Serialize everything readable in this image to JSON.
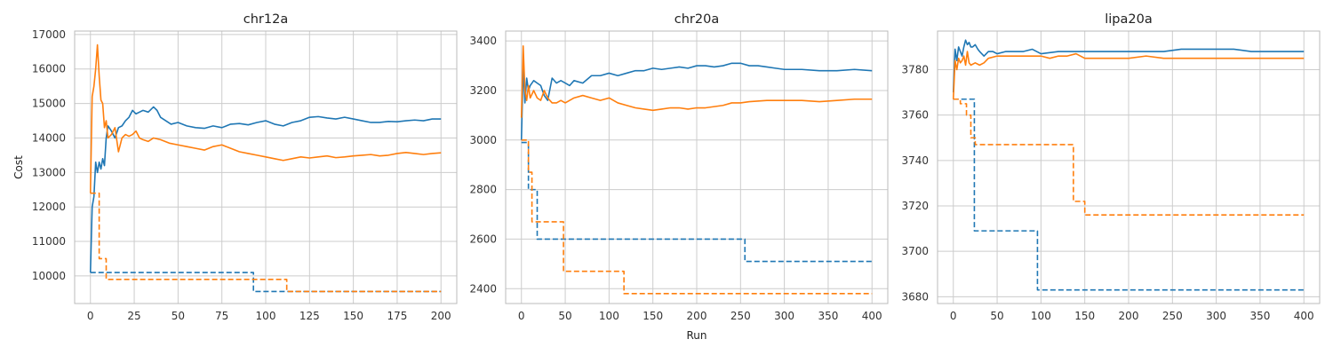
{
  "chart_data": [
    {
      "type": "line",
      "title": "chr12a",
      "xlabel": "",
      "ylabel": "Cost",
      "xlim": [
        -9,
        209
      ],
      "ylim": [
        9200,
        17100
      ],
      "xticks": [
        0,
        25,
        50,
        75,
        100,
        125,
        150,
        175,
        200
      ],
      "yticks": [
        10000,
        11000,
        12000,
        13000,
        14000,
        15000,
        16000,
        17000
      ],
      "grid": true,
      "series": [
        {
          "color": "#1f77b4",
          "style": "solid",
          "x": [
            0,
            1,
            2,
            3,
            4,
            5,
            6,
            7,
            8,
            9,
            10,
            12,
            14,
            16,
            18,
            20,
            22,
            24,
            26,
            28,
            30,
            33,
            36,
            38,
            40,
            43,
            46,
            50,
            55,
            60,
            65,
            70,
            75,
            80,
            85,
            90,
            95,
            100,
            105,
            110,
            115,
            120,
            125,
            130,
            135,
            140,
            145,
            150,
            155,
            160,
            165,
            170,
            175,
            180,
            185,
            190,
            195,
            200
          ],
          "y": [
            10100,
            12000,
            12300,
            13300,
            13000,
            13300,
            13100,
            13400,
            13200,
            14000,
            14350,
            14200,
            14000,
            14300,
            14350,
            14500,
            14600,
            14800,
            14700,
            14750,
            14800,
            14750,
            14900,
            14800,
            14600,
            14500,
            14400,
            14450,
            14350,
            14300,
            14280,
            14350,
            14300,
            14400,
            14420,
            14380,
            14450,
            14500,
            14400,
            14350,
            14450,
            14500,
            14600,
            14620,
            14580,
            14550,
            14600,
            14550,
            14500,
            14450,
            14450,
            14480,
            14470,
            14500,
            14520,
            14500,
            14550,
            14550
          ]
        },
        {
          "color": "#ff7f0e",
          "style": "solid",
          "x": [
            0,
            1,
            2,
            3,
            4,
            5,
            6,
            7,
            8,
            9,
            10,
            12,
            14,
            16,
            18,
            20,
            22,
            24,
            26,
            28,
            30,
            33,
            36,
            40,
            45,
            50,
            55,
            60,
            65,
            70,
            75,
            80,
            85,
            90,
            95,
            100,
            105,
            110,
            115,
            120,
            125,
            130,
            135,
            140,
            145,
            150,
            155,
            160,
            165,
            170,
            175,
            180,
            185,
            190,
            195,
            200
          ],
          "y": [
            12400,
            15200,
            15500,
            16000,
            16700,
            15800,
            15100,
            15000,
            14300,
            14500,
            14000,
            14100,
            14300,
            13600,
            14000,
            14100,
            14050,
            14100,
            14200,
            14000,
            13950,
            13900,
            14000,
            13950,
            13850,
            13800,
            13750,
            13700,
            13650,
            13750,
            13800,
            13700,
            13600,
            13550,
            13500,
            13450,
            13400,
            13350,
            13400,
            13450,
            13420,
            13450,
            13480,
            13430,
            13450,
            13480,
            13500,
            13520,
            13480,
            13500,
            13550,
            13580,
            13550,
            13520,
            13550,
            13570
          ]
        },
        {
          "color": "#1f77b4",
          "style": "dashed",
          "x": [
            0,
            93,
            93,
            200
          ],
          "y": [
            10100,
            10100,
            9550,
            9550
          ]
        },
        {
          "color": "#ff7f0e",
          "style": "dashed",
          "x": [
            0,
            5,
            5,
            9,
            9,
            112,
            112,
            200
          ],
          "y": [
            12400,
            12400,
            10500,
            10500,
            9900,
            9900,
            9550,
            9550
          ]
        }
      ]
    },
    {
      "type": "line",
      "title": "chr20a",
      "xlabel": "Run",
      "ylabel": "",
      "xlim": [
        -18,
        418
      ],
      "ylim": [
        2340,
        3440
      ],
      "xticks": [
        0,
        50,
        100,
        150,
        200,
        250,
        300,
        350,
        400
      ],
      "yticks": [
        2400,
        2600,
        2800,
        3000,
        3200,
        3400
      ],
      "grid": true,
      "series": [
        {
          "color": "#1f77b4",
          "style": "solid",
          "x": [
            0,
            2,
            4,
            6,
            8,
            10,
            14,
            18,
            22,
            26,
            30,
            35,
            40,
            45,
            50,
            55,
            60,
            70,
            80,
            90,
            100,
            110,
            120,
            130,
            140,
            150,
            160,
            170,
            180,
            190,
            200,
            210,
            220,
            230,
            240,
            250,
            260,
            270,
            280,
            290,
            300,
            320,
            340,
            360,
            380,
            400
          ],
          "y": [
            3000,
            3300,
            3150,
            3250,
            3200,
            3220,
            3240,
            3230,
            3220,
            3180,
            3160,
            3250,
            3230,
            3240,
            3230,
            3220,
            3240,
            3230,
            3260,
            3260,
            3270,
            3260,
            3270,
            3280,
            3280,
            3290,
            3285,
            3290,
            3295,
            3290,
            3300,
            3300,
            3295,
            3300,
            3310,
            3310,
            3300,
            3300,
            3295,
            3290,
            3285,
            3285,
            3280,
            3280,
            3285,
            3280
          ]
        },
        {
          "color": "#ff7f0e",
          "style": "solid",
          "x": [
            0,
            2,
            4,
            6,
            8,
            10,
            14,
            18,
            22,
            26,
            30,
            35,
            40,
            45,
            50,
            60,
            70,
            80,
            90,
            100,
            110,
            120,
            130,
            140,
            150,
            160,
            170,
            180,
            190,
            200,
            210,
            220,
            230,
            240,
            250,
            260,
            280,
            300,
            320,
            340,
            360,
            380,
            400
          ],
          "y": [
            3090,
            3380,
            3200,
            3160,
            3220,
            3170,
            3200,
            3170,
            3160,
            3200,
            3170,
            3150,
            3150,
            3160,
            3150,
            3170,
            3180,
            3170,
            3160,
            3170,
            3150,
            3140,
            3130,
            3125,
            3120,
            3125,
            3130,
            3130,
            3125,
            3130,
            3130,
            3135,
            3140,
            3150,
            3150,
            3155,
            3160,
            3160,
            3160,
            3155,
            3160,
            3165,
            3165
          ]
        },
        {
          "color": "#1f77b4",
          "style": "dashed",
          "x": [
            0,
            8,
            8,
            18,
            18,
            255,
            255,
            400
          ],
          "y": [
            2990,
            2990,
            2800,
            2800,
            2600,
            2600,
            2510,
            2510
          ]
        },
        {
          "color": "#ff7f0e",
          "style": "dashed",
          "x": [
            0,
            8,
            8,
            12,
            12,
            48,
            48,
            117,
            117,
            400
          ],
          "y": [
            3000,
            3000,
            2870,
            2870,
            2670,
            2670,
            2470,
            2470,
            2380,
            2380
          ]
        }
      ]
    },
    {
      "type": "line",
      "title": "lipa20a",
      "xlabel": "",
      "ylabel": "",
      "xlim": [
        -18,
        418
      ],
      "ylim": [
        3677,
        3797
      ],
      "xticks": [
        0,
        50,
        100,
        150,
        200,
        250,
        300,
        350,
        400
      ],
      "yticks": [
        3680,
        3700,
        3720,
        3740,
        3760,
        3780
      ],
      "grid": true,
      "series": [
        {
          "color": "#1f77b4",
          "style": "solid",
          "x": [
            0,
            2,
            4,
            6,
            8,
            10,
            12,
            14,
            16,
            18,
            20,
            22,
            25,
            28,
            30,
            35,
            40,
            45,
            50,
            60,
            70,
            80,
            90,
            100,
            120,
            140,
            160,
            180,
            200,
            220,
            240,
            260,
            280,
            300,
            320,
            340,
            360,
            380,
            400
          ],
          "y": [
            3770,
            3789,
            3784,
            3790,
            3788,
            3786,
            3790,
            3793,
            3791,
            3792,
            3790,
            3790,
            3791,
            3789,
            3788,
            3786,
            3788,
            3788,
            3787,
            3788,
            3788,
            3788,
            3789,
            3787,
            3788,
            3788,
            3788,
            3788,
            3788,
            3788,
            3788,
            3789,
            3789,
            3789,
            3789,
            3788,
            3788,
            3788,
            3788
          ]
        },
        {
          "color": "#ff7f0e",
          "style": "solid",
          "x": [
            0,
            2,
            4,
            6,
            8,
            10,
            12,
            14,
            16,
            18,
            20,
            25,
            30,
            35,
            40,
            50,
            60,
            70,
            80,
            90,
            100,
            110,
            120,
            130,
            140,
            150,
            160,
            180,
            200,
            220,
            240,
            260,
            280,
            300,
            320,
            340,
            360,
            380,
            400
          ],
          "y": [
            3767,
            3784,
            3780,
            3785,
            3783,
            3784,
            3786,
            3782,
            3788,
            3783,
            3782,
            3783,
            3782,
            3783,
            3785,
            3786,
            3786,
            3786,
            3786,
            3786,
            3786,
            3785,
            3786,
            3786,
            3787,
            3785,
            3785,
            3785,
            3785,
            3786,
            3785,
            3785,
            3785,
            3785,
            3785,
            3785,
            3785,
            3785,
            3785
          ]
        },
        {
          "color": "#1f77b4",
          "style": "dashed",
          "x": [
            0,
            24,
            24,
            96,
            96,
            400
          ],
          "y": [
            3767,
            3767,
            3709,
            3709,
            3683,
            3683
          ]
        },
        {
          "color": "#ff7f0e",
          "style": "dashed",
          "x": [
            0,
            8,
            8,
            15,
            15,
            20,
            20,
            25,
            25,
            137,
            137,
            150,
            150,
            400
          ],
          "y": [
            3767,
            3767,
            3765,
            3765,
            3760,
            3760,
            3750,
            3750,
            3747,
            3747,
            3722,
            3722,
            3716,
            3716
          ]
        }
      ]
    }
  ]
}
